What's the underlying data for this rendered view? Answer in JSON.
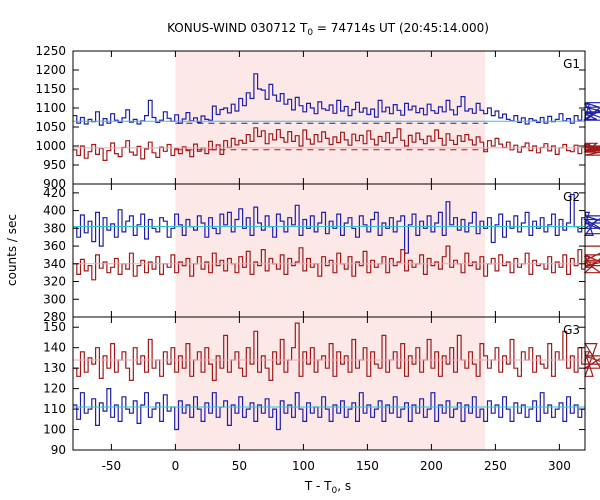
{
  "chart_data": {
    "type": "line",
    "title_main": "KONUS-WIND 030712 T",
    "title_sub": "0",
    "title_rest": " = 74714s UT (20:45:14.000)",
    "xlabel_main": "T - T",
    "xlabel_sub": "0",
    "xlabel_rest": ", s",
    "ylabel": "counts / sec",
    "xlim": [
      -80,
      320
    ],
    "x_ticks": [
      -50,
      0,
      50,
      100,
      150,
      200,
      250,
      300
    ],
    "highlight_interval": [
      0,
      242
    ],
    "highlight_color": "#fde8e8",
    "colors": {
      "blue": "#1f1fa8",
      "red": "#a11a1a",
      "cyan": "#33c5d6",
      "pink": "#f2a7b5"
    },
    "bin_width": 2.944,
    "panels": [
      {
        "name": "G1",
        "ylim": [
          900,
          1250
        ],
        "y_ticks": [
          900,
          950,
          1000,
          1050,
          1100,
          1150,
          1200,
          1250
        ],
        "series": [
          {
            "color_key": "blue",
            "start": -80,
            "fit_level": 1065,
            "fit_color_key": "cyan",
            "bg_level": 1060,
            "bg_color_key": "blue",
            "values": [
              1080,
              1060,
              1075,
              1058,
              1070,
              1064,
              1090,
              1055,
              1072,
              1060,
              1085,
              1068,
              1062,
              1074,
              1095,
              1063,
              1070,
              1058,
              1066,
              1080,
              1120,
              1075,
              1062,
              1068,
              1090,
              1073,
              1065,
              1082,
              1060,
              1071,
              1088,
              1066,
              1074,
              1062,
              1079,
              1070,
              1068,
              1105,
              1083,
              1096,
              1100,
              1087,
              1110,
              1092,
              1125,
              1106,
              1140,
              1125,
              1190,
              1150,
              1147,
              1123,
              1162,
              1134,
              1118,
              1138,
              1110,
              1123,
              1095,
              1128,
              1106,
              1090,
              1112,
              1100,
              1085,
              1116,
              1098,
              1094,
              1108,
              1086,
              1120,
              1092,
              1104,
              1080,
              1096,
              1115,
              1089,
              1100,
              1083,
              1097,
              1076,
              1120,
              1090,
              1102,
              1085,
              1109,
              1094,
              1081,
              1112,
              1095,
              1105,
              1088,
              1099,
              1082,
              1110,
              1093,
              1086,
              1103,
              1090,
              1120,
              1095,
              1082,
              1104,
              1130,
              1092,
              1098,
              1086,
              1112,
              1094,
              1085,
              1100,
              1080,
              1092,
              1074,
              1084,
              1070,
              1066,
              1080,
              1062,
              1074,
              1058,
              1072,
              1068,
              1062,
              1075,
              1060,
              1078,
              1064,
              1070,
              1085,
              1066,
              1072,
              1060,
              1080,
              1068,
              1095,
              1075,
              1110,
              1085,
              1070,
              1102,
              1090,
              1068,
              1114,
              1088
            ]
          },
          {
            "color_key": "red",
            "start": -80,
            "fit_level": 995,
            "fit_color_key": "pink",
            "bg_level": 990,
            "bg_color_key": "red",
            "values": [
              990,
              975,
              1000,
              968,
              985,
              1004,
              978,
              994,
              962,
              988,
              1008,
              980,
              972,
              996,
              1014,
              984,
              976,
              999,
              966,
              992,
              1010,
              982,
              970,
              997,
              986,
              1004,
              975,
              993,
              980,
              998,
              988,
              972,
              1005,
              986,
              995,
              980,
              1012,
              990,
              1003,
              978,
              1014,
              996,
              1020,
              1003,
              1015,
              1007,
              1030,
              1012,
              1048,
              1025,
              1040,
              1006,
              1032,
              1016,
              1043,
              1022,
              1010,
              1038,
              1012,
              1027,
              1000,
              1042,
              1018,
              1005,
              1030,
              1011,
              1037,
              1020,
              1004,
              1024,
              1009,
              1036,
              1016,
              1002,
              1031,
              1014,
              1028,
              1006,
              1040,
              1018,
              1003,
              1025,
              1012,
              1035,
              1008,
              1022,
              1045,
              1015,
              1000,
              1028,
              1010,
              1034,
              1017,
              1006,
              1026,
              1013,
              1042,
              1020,
              1002,
              1032,
              1015,
              1004,
              1027,
              1012,
              1030,
              1016,
              1003,
              1024,
              1010,
              985,
              1014,
              1000,
              1020,
              1005,
              996,
              1010,
              990,
              1002,
              984,
              998,
              1008,
              988,
              1000,
              982,
              996,
              1006,
              987,
              1000,
              978,
              995,
              1004,
              988,
              985,
              1002,
              980,
              996,
              992,
              1004,
              985,
              1007,
              990,
              998,
              984,
              1000,
              988,
              976,
              995
            ]
          }
        ]
      },
      {
        "name": "G2",
        "ylim": [
          280,
          430
        ],
        "y_ticks": [
          280,
          300,
          320,
          340,
          360,
          380,
          400,
          420
        ],
        "series": [
          {
            "color_key": "blue",
            "start": -80,
            "fit_level": 382,
            "fit_color_key": "cyan",
            "values": [
              382,
              370,
              395,
              375,
              388,
              365,
              398,
              360,
              392,
              378,
              385,
              370,
              401,
              376,
              388,
              394,
              372,
              384,
              396,
              368,
              390,
              380,
              376,
              392,
              388,
              370,
              380,
              396,
              384,
              372,
              390,
              382,
              378,
              394,
              386,
              370,
              392,
              380,
              374,
              396,
              384,
              398,
              376,
              390,
              402,
              380,
              392,
              372,
              404,
              386,
              378,
              394,
              382,
              370,
              396,
              388,
              376,
              392,
              384,
              406,
              372,
              390,
              380,
              394,
              376,
              386,
              398,
              374,
              388,
              380,
              396,
              372,
              386,
              392,
              380,
              370,
              394,
              384,
              376,
              390,
              398,
              372,
              386,
              380,
              392,
              376,
              388,
              394,
              352,
              384,
              396,
              372,
              388,
              380,
              394,
              376,
              386,
              398,
              372,
              410,
              384,
              392,
              378,
              390,
              376,
              386,
              398,
              374,
              388,
              380,
              392,
              364,
              384,
              396,
              370,
              388,
              380,
              394,
              376,
              386,
              398,
              372,
              388,
              380,
              392,
              376,
              384,
              396,
              372,
              390,
              378,
              386,
              418,
              382,
              376,
              392,
              384,
              398,
              372,
              390,
              380,
              394,
              386,
              374
            ]
          },
          {
            "color_key": "red",
            "start": -80,
            "fit_level": 340,
            "fit_color_key": "pink",
            "values": [
              340,
              328,
              345,
              332,
              338,
              322,
              350,
              335,
              342,
              330,
              336,
              346,
              328,
              340,
              334,
              352,
              326,
              338,
              344,
              330,
              342,
              334,
              348,
              328,
              340,
              336,
              350,
              330,
              342,
              338,
              346,
              326,
              340,
              348,
              334,
              342,
              330,
              352,
              338,
              344,
              332,
              346,
              340,
              330,
              348,
              336,
              354,
              328,
              342,
              338,
              356,
              332,
              346,
              340,
              334,
              350,
              328,
              346,
              338,
              342,
              358,
              332,
              346,
              336,
              340,
              326,
              348,
              338,
              344,
              330,
              352,
              340,
              334,
              348,
              326,
              342,
              338,
              354,
              330,
              344,
              336,
              340,
              348,
              330,
              346,
              338,
              342,
              356,
              332,
              344,
              336,
              340,
              350,
              328,
              346,
              338,
              342,
              334,
              348,
              360,
              336,
              344,
              340,
              330,
              352,
              338,
              342,
              334,
              348,
              326,
              340,
              346,
              332,
              350,
              338,
              342,
              330,
              346,
              336,
              340,
              352,
              328,
              344,
              338,
              340,
              334,
              348,
              330,
              342,
              336,
              350,
              328,
              346,
              338,
              356,
              334,
              340,
              348,
              336,
              342,
              330,
              350,
              338,
              344,
              360
            ]
          }
        ]
      },
      {
        "name": "G3",
        "ylim": [
          90,
          155
        ],
        "y_ticks": [
          90,
          100,
          110,
          120,
          130,
          140,
          150
        ],
        "series": [
          {
            "color_key": "red",
            "start": -80,
            "fit_level": 134,
            "fit_color_key": "pink",
            "values": [
              130,
              126,
              138,
              128,
              135,
              132,
              140,
              125,
              136,
              130,
              142,
              128,
              134,
              138,
              130,
              124,
              140,
              132,
              136,
              128,
              144,
              130,
              134,
              126,
              138,
              132,
              140,
              128,
              136,
              130,
              142,
              126,
              134,
              138,
              128,
              140,
              132,
              124,
              136,
              130,
              146,
              128,
              134,
              138,
              130,
              126,
              140,
              132,
              148,
              128,
              136,
              130,
              124,
              138,
              132,
              144,
              128,
              134,
              140,
              152,
              126,
              138,
              132,
              140,
              128,
              134,
              136,
              130,
              142,
              126,
              138,
              132,
              136,
              128,
              144,
              130,
              134,
              140,
              126,
              138,
              132,
              130,
              146,
              128,
              134,
              138,
              130,
              142,
              126,
              136,
              132,
              140,
              128,
              134,
              144,
              130,
              138,
              126,
              136,
              132,
              140,
              128,
              146,
              134,
              130,
              138,
              132,
              126,
              142,
              136,
              130,
              134,
              140,
              128,
              136,
              132,
              144,
              130,
              126,
              138,
              134,
              140,
              128,
              136,
              132,
              130,
              142,
              126,
              138,
              134,
              148,
              130,
              136,
              128,
              140,
              132,
              134,
              138,
              126,
              142,
              130,
              136,
              132
            ]
          },
          {
            "color_key": "blue",
            "start": -80,
            "fit_level": 111,
            "fit_color_key": "cyan",
            "values": [
              112,
              105,
              118,
              108,
              110,
              115,
              102,
              113,
              109,
              120,
              106,
              112,
              104,
              116,
              110,
              108,
              114,
              103,
              112,
              118,
              106,
              110,
              113,
              104,
              117,
              109,
              111,
              100,
              114,
              108,
              112,
              106,
              116,
              110,
              104,
              113,
              108,
              118,
              106,
              111,
              114,
              102,
              112,
              108,
              116,
              106,
              110,
              113,
              104,
              112,
              108,
              115,
              106,
              110,
              100,
              114,
              108,
              112,
              106,
              118,
              110,
              104,
              113,
              108,
              111,
              106,
              116,
              110,
              104,
              112,
              108,
              114,
              106,
              110,
              113,
              104,
              118,
              108,
              112,
              106,
              110,
              114,
              104,
              112,
              108,
              116,
              106,
              110,
              113,
              104,
              112,
              108,
              115,
              106,
              110,
              118,
              104,
              112,
              108,
              114,
              106,
              110,
              113,
              104,
              112,
              108,
              116,
              106,
              110,
              104,
              114,
              108,
              112,
              106,
              116,
              110,
              104,
              113,
              108,
              112,
              106,
              110,
              114,
              104,
              118,
              108,
              112,
              106,
              110,
              113,
              104,
              116,
              108,
              112,
              106,
              110
            ]
          }
        ]
      }
    ]
  }
}
